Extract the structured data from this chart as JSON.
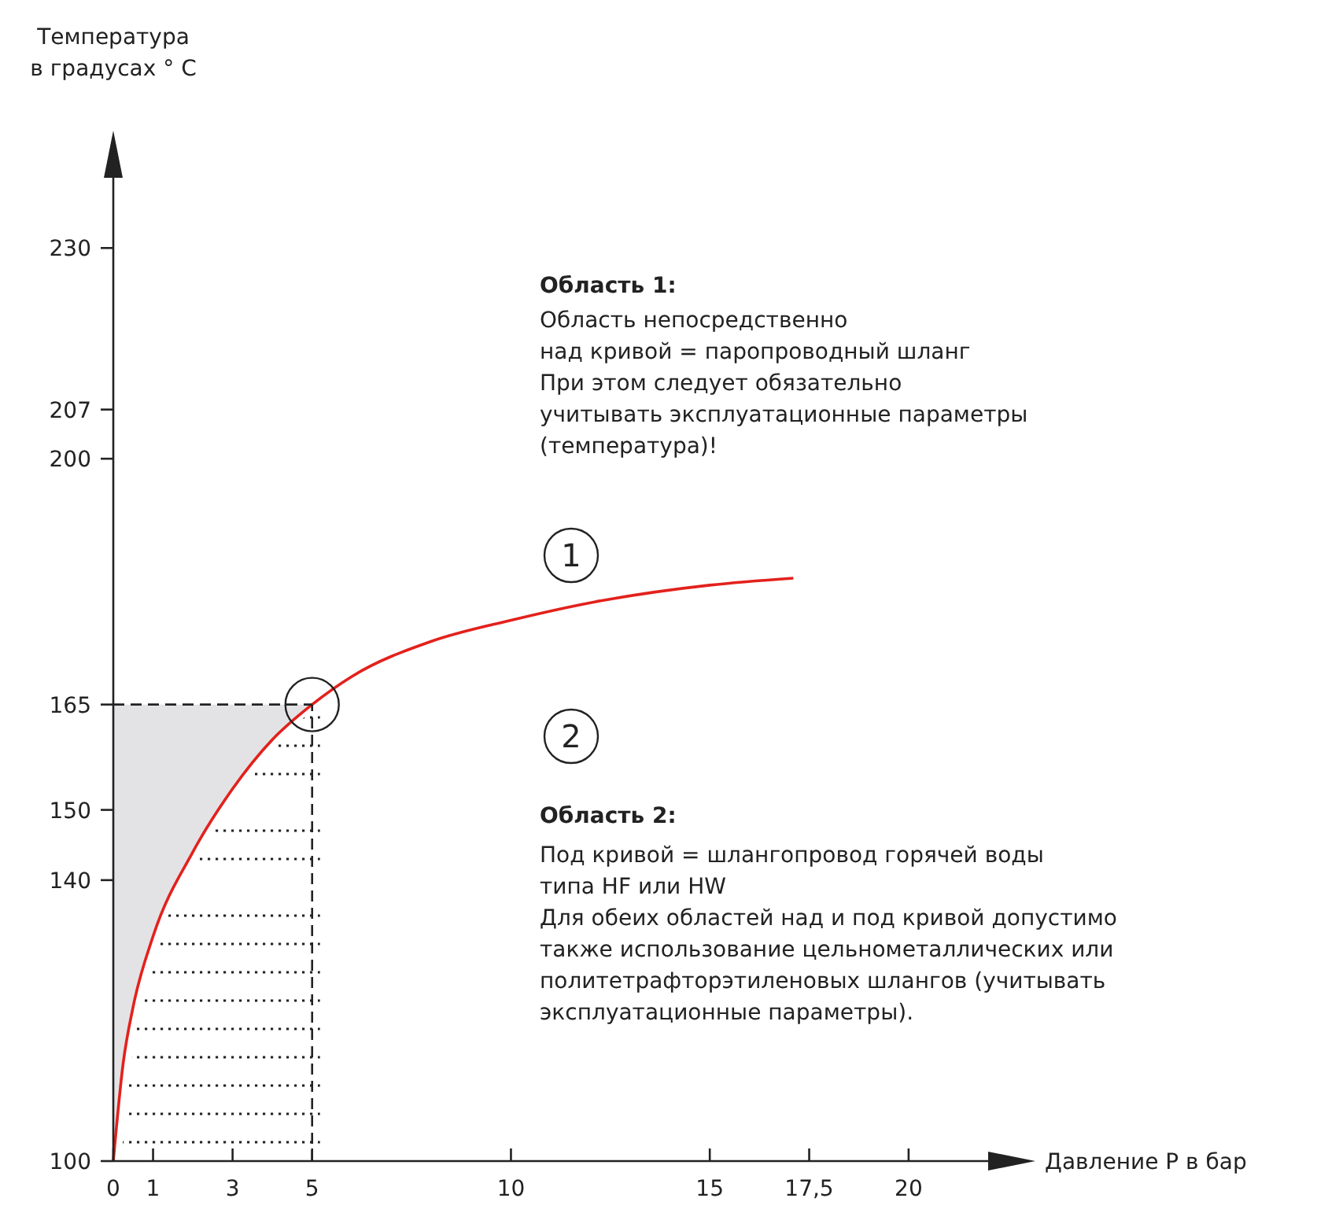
{
  "chart_data": {
    "type": "line",
    "xlabel": "Давление Р в бар",
    "ylabel": "Температура\nв градусах ° C",
    "xlim": [
      0,
      22
    ],
    "ylim": [
      100,
      240
    ],
    "xticks": [
      0,
      1,
      3,
      5,
      10,
      15,
      {
        "value": 17.5,
        "label": "17,5"
      },
      20
    ],
    "yticks": [
      100,
      140,
      150,
      165,
      200,
      207,
      230
    ],
    "series": [
      {
        "color": "#e3211c",
        "x": [
          0,
          0.25,
          0.5,
          1,
          2,
          3,
          4,
          5,
          6,
          8,
          10,
          12,
          15,
          17.1
        ],
        "values": [
          100,
          114,
          122,
          132,
          144,
          153,
          160,
          165,
          169,
          174,
          177,
          179.5,
          182,
          183
        ]
      }
    ],
    "ref_lines": [
      {
        "axis": "y",
        "value": 165,
        "line_style": "dashed",
        "color": "#222222"
      },
      {
        "axis": "x",
        "value": 5,
        "line_style": "dashed",
        "color": "#222222"
      }
    ],
    "marker": "none",
    "line_style": "solid",
    "grid": false,
    "annotations": [
      "Область 1:",
      "Область непосредственно\nнад кривой = паропроводный шланг\nПри этом следует обязательно\nучитывать эксплуатационные параметры\n(температура)!",
      "1",
      "2",
      "Область 2:",
      "Под кривой = шлангопровод горячей воды\nтипа HF или HW\n\nДля обеих областей над и под кривой допустимо\nтакже использование цельнометаллических или\nполитетрафторэтиленовых шлангов (учитывать\nэксплуатационные параметры)."
    ]
  }
}
